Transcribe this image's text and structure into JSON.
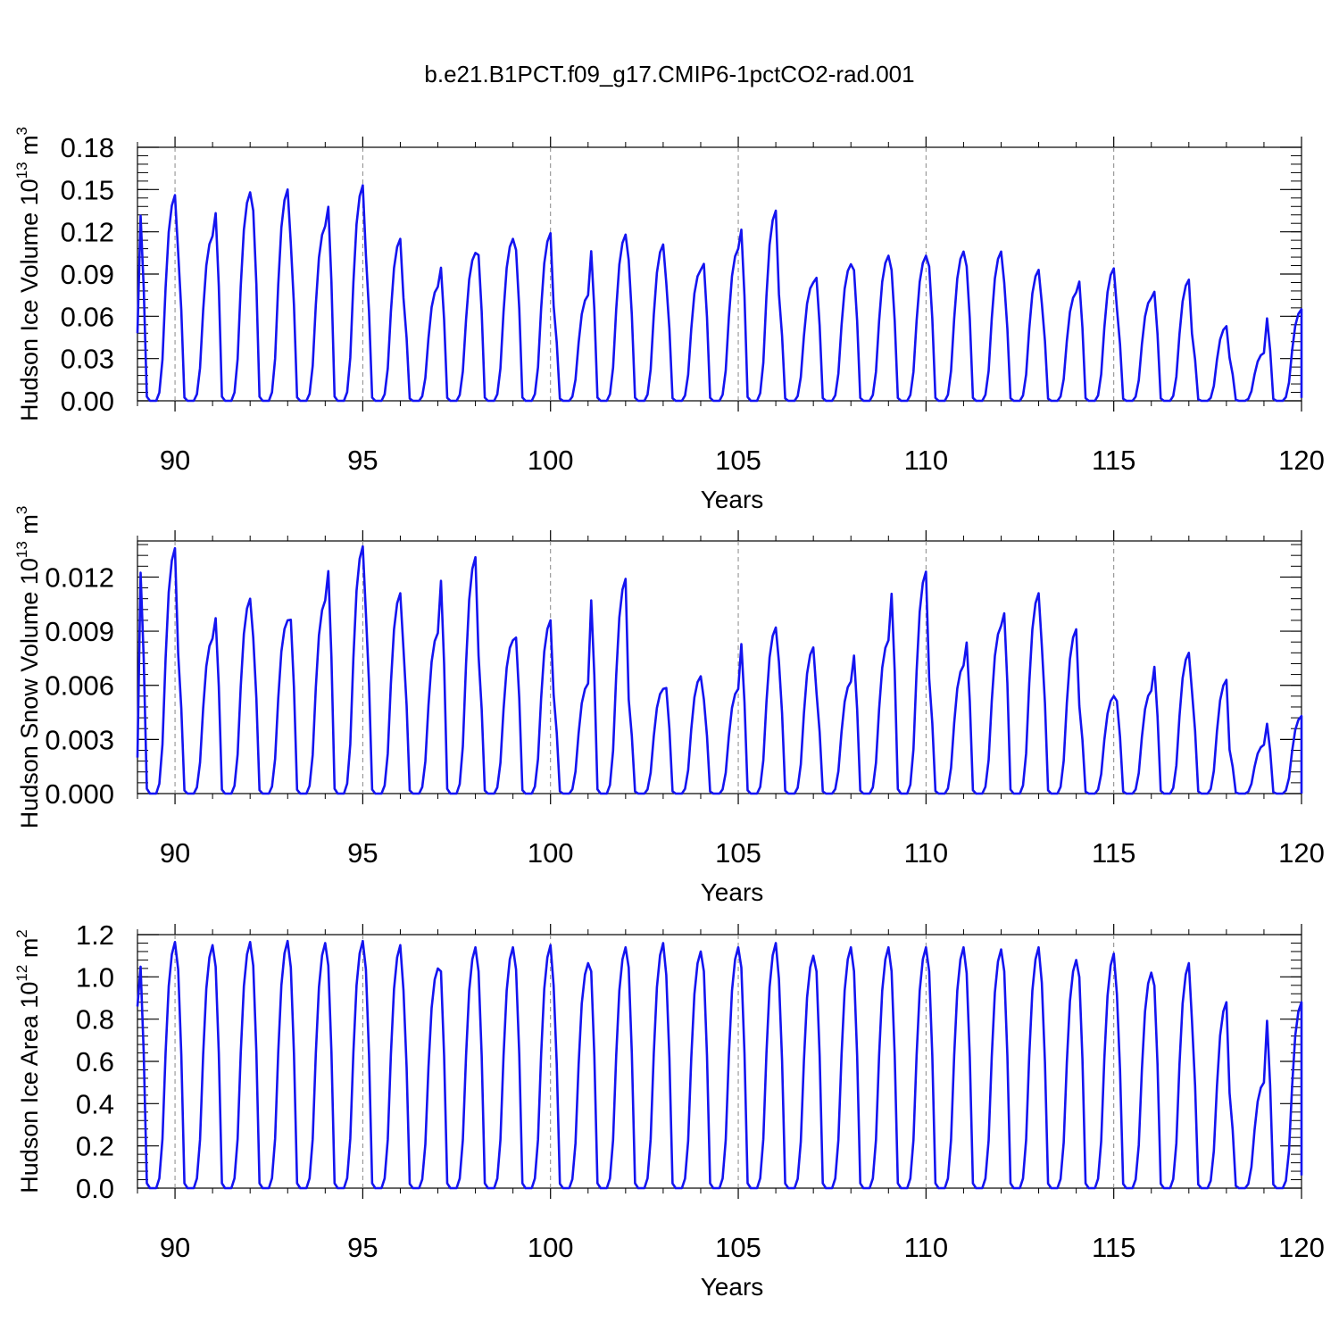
{
  "chart_data": {
    "title": "b.e21.B1PCT.f09_g17.CMIP6-1pctCO2-rad.001",
    "type": "line",
    "line_color": "#1414f0",
    "grid": "dashed vertical lines at x ticks",
    "panels": [
      {
        "type": "line",
        "ylabel": {
          "main": "Hudson Ice Volume 10",
          "exp": "13",
          "unit": " m",
          "unit_exp": "3"
        },
        "xlabel": "Years",
        "xlim": [
          89.0,
          120.0
        ],
        "ylim": [
          0.0,
          0.18
        ],
        "x_ticks": [
          "90",
          "95",
          "100",
          "105",
          "110",
          "115",
          "120"
        ],
        "y_ticks": [
          "0.00",
          "0.03",
          "0.06",
          "0.09",
          "0.12",
          "0.15",
          "0.18"
        ],
        "series": [
          {
            "start_year": 89.0,
            "step": 0.0833,
            "peaks": [
              0.146,
              0.117,
              0.148,
              0.15,
              0.124,
              0.153,
              0.115,
              0.081,
              0.105,
              0.115,
              0.119,
              0.075,
              0.118,
              0.111,
              0.093,
              0.108,
              0.135,
              0.084,
              0.097,
              0.103,
              0.103,
              0.106,
              0.106,
              0.093,
              0.077,
              0.094,
              0.073,
              0.086,
              0.053,
              0.034,
              0.065
            ],
            "start_value": 0.048,
            "end_value": 0.002
          }
        ]
      },
      {
        "type": "line",
        "ylabel": {
          "main": "Hudson Snow Volume 10",
          "exp": "13",
          "unit": " m",
          "unit_exp": "3"
        },
        "xlabel": "Years",
        "xlim": [
          89.0,
          120.0
        ],
        "ylim": [
          0.0,
          0.014
        ],
        "x_ticks": [
          "90",
          "95",
          "100",
          "105",
          "110",
          "115",
          "120"
        ],
        "y_ticks": [
          "0.000",
          "0.003",
          "0.006",
          "0.009",
          "0.012"
        ],
        "series": [
          {
            "start_year": 89.0,
            "step": 0.0833,
            "peaks": [
              0.0136,
              0.0086,
              0.0108,
              0.0096,
              0.0107,
              0.0137,
              0.0111,
              0.0089,
              0.0131,
              0.0085,
              0.0096,
              0.0061,
              0.0119,
              0.0058,
              0.0065,
              0.0058,
              0.0092,
              0.0081,
              0.0062,
              0.0085,
              0.0123,
              0.0071,
              0.0093,
              0.0111,
              0.0091,
              0.0054,
              0.0057,
              0.0078,
              0.0063,
              0.0027,
              0.0043
            ],
            "start_value": 0.002,
            "end_value": 0.0
          }
        ]
      },
      {
        "type": "line",
        "ylabel": {
          "main": "Hudson Ice Area 10",
          "exp": "12",
          "unit": " m",
          "unit_exp": "2"
        },
        "xlabel": "Years",
        "xlim": [
          89.0,
          120.0
        ],
        "ylim": [
          0.0,
          1.2
        ],
        "x_ticks": [
          "90",
          "95",
          "100",
          "105",
          "110",
          "115",
          "120"
        ],
        "y_ticks": [
          "0.0",
          "0.2",
          "0.4",
          "0.6",
          "0.8",
          "1.0",
          "1.2"
        ],
        "series": [
          {
            "start_year": 89.0,
            "step": 0.0833,
            "peaks": [
              1.165,
              1.15,
              1.165,
              1.17,
              1.16,
              1.17,
              1.15,
              1.04,
              1.14,
              1.14,
              1.15,
              1.065,
              1.14,
              1.16,
              1.12,
              1.14,
              1.16,
              1.1,
              1.14,
              1.14,
              1.14,
              1.14,
              1.13,
              1.14,
              1.08,
              1.11,
              1.02,
              1.065,
              0.88,
              0.5,
              0.88
            ],
            "start_value": 0.86,
            "end_value": 0.06
          }
        ]
      }
    ]
  }
}
